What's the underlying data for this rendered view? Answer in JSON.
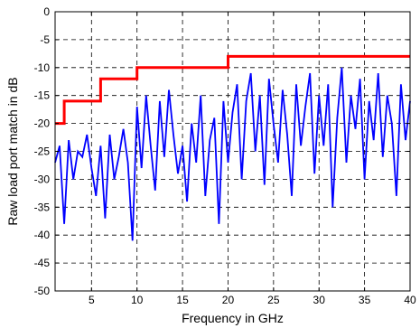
{
  "chart_data": {
    "type": "line",
    "title": "",
    "xlabel": "Frequency in GHz",
    "ylabel": "Raw load port match in dB",
    "xlim": [
      1,
      40
    ],
    "ylim": [
      -50,
      0
    ],
    "grid": true,
    "x_ticks": [
      5,
      10,
      15,
      20,
      25,
      30,
      35,
      40
    ],
    "x_tick_labels": [
      "5",
      "10",
      "15",
      "20",
      "25",
      "30",
      "35",
      "40"
    ],
    "y_ticks": [
      0,
      -5,
      -10,
      -15,
      -20,
      -25,
      -30,
      -35,
      -40,
      -45,
      -50
    ],
    "y_tick_labels": [
      "0",
      "-5",
      "-10",
      "-15",
      "-20",
      "-25",
      "-30",
      "-35",
      "-40",
      "-45",
      "-50"
    ],
    "series": [
      {
        "color": "#0000ff",
        "style": "line",
        "x": [
          1,
          1.5,
          2,
          2.5,
          3,
          3.5,
          4,
          4.5,
          5,
          5.5,
          6,
          6.5,
          7,
          7.5,
          8,
          8.5,
          9,
          9.5,
          10,
          10.5,
          11,
          11.5,
          12,
          12.5,
          13,
          13.5,
          14,
          14.5,
          15,
          15.5,
          16,
          16.5,
          17,
          17.5,
          18,
          18.5,
          19,
          19.5,
          20,
          20.5,
          21,
          21.5,
          22,
          22.5,
          23,
          23.5,
          24,
          24.5,
          25,
          25.5,
          26,
          26.5,
          27,
          27.5,
          28,
          28.5,
          29,
          29.5,
          30,
          30.5,
          31,
          31.5,
          32,
          32.5,
          33,
          33.5,
          34,
          34.5,
          35,
          35.5,
          36,
          36.5,
          37,
          37.5,
          38,
          38.5,
          39,
          39.5,
          40
        ],
        "y": [
          -27,
          -24,
          -38,
          -23,
          -30,
          -25,
          -26,
          -22,
          -28,
          -33,
          -24,
          -37,
          -22,
          -30,
          -26,
          -21,
          -27,
          -41,
          -17,
          -28,
          -15,
          -24,
          -32,
          -16,
          -26,
          -14,
          -22,
          -29,
          -24,
          -34,
          -20,
          -27,
          -15,
          -33,
          -23,
          -19,
          -38,
          -16,
          -27,
          -18,
          -13,
          -30,
          -16,
          -11,
          -25,
          -15,
          -31,
          -12,
          -20,
          -27,
          -14,
          -22,
          -33,
          -13,
          -24,
          -17,
          -11,
          -29,
          -15,
          -24,
          -13,
          -35,
          -19,
          -10,
          -27,
          -15,
          -21,
          -12,
          -30,
          -16,
          -23,
          -11,
          -26,
          -15,
          -20,
          -33,
          -13,
          -23,
          -16
        ]
      },
      {
        "color": "#ff0000",
        "style": "step-limit",
        "x": [
          1,
          2,
          2,
          6,
          6,
          10,
          10,
          20,
          20,
          40
        ],
        "y": [
          -20,
          -20,
          -16,
          -16,
          -12,
          -12,
          -10,
          -10,
          -8,
          -8
        ]
      }
    ]
  }
}
